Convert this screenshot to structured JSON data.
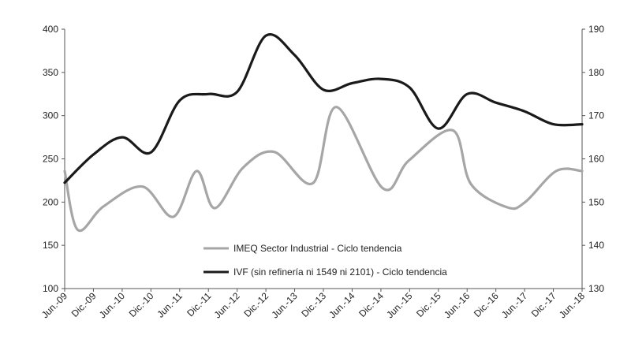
{
  "chart_data": {
    "type": "line",
    "title": "",
    "x": [
      "Jun.-09",
      "Dic.-09",
      "Jun.-10",
      "Dic.-10",
      "Jun.-11",
      "Dic.-11",
      "Jun.-12",
      "Dic.-12",
      "Jun.-13",
      "Dic.-13",
      "Jun.-14",
      "Dic.-14",
      "Jun.-15",
      "Dic.-15",
      "Jun.-16",
      "Dic.-16",
      "Jun.-17",
      "Dic.-17",
      "Jun.-18"
    ],
    "y_left": {
      "ticks": [
        "100",
        "150",
        "200",
        "250",
        "300",
        "350",
        "400"
      ],
      "range": [
        100,
        400
      ]
    },
    "y_right": {
      "ticks": [
        "130",
        "140",
        "150",
        "160",
        "170",
        "180",
        "190"
      ],
      "range": [
        130,
        190
      ]
    },
    "series": [
      {
        "name": "IMEQ Sector Industrial - Ciclo tendencia",
        "axis": "left",
        "color": "#a6a6a6",
        "values": [
          236,
          168,
          195,
          218,
          183,
          236,
          193,
          240,
          258,
          222,
          310,
          216,
          248,
          283,
          221,
          194,
          200,
          236,
          236
        ],
        "t": [
          0,
          0.05,
          0.15,
          0.3,
          0.42,
          0.51,
          0.58,
          0.69,
          0.81,
          0.96,
          1.05,
          1.23,
          1.33,
          1.5,
          1.57,
          1.71,
          1.78,
          1.9,
          2.0
        ]
      },
      {
        "name": "IVF (sin refinería ni 1549 ni 2101) - Ciclo tendencia",
        "axis": "right",
        "color": "#1a1a1a",
        "values": [
          154.5,
          161,
          165,
          161.5,
          173.5,
          175,
          175.5,
          188.5,
          184,
          176,
          177.5,
          178.5,
          176.5,
          167,
          175,
          173,
          171,
          168,
          168
        ]
      }
    ],
    "legend": {
      "placement": "center"
    }
  }
}
